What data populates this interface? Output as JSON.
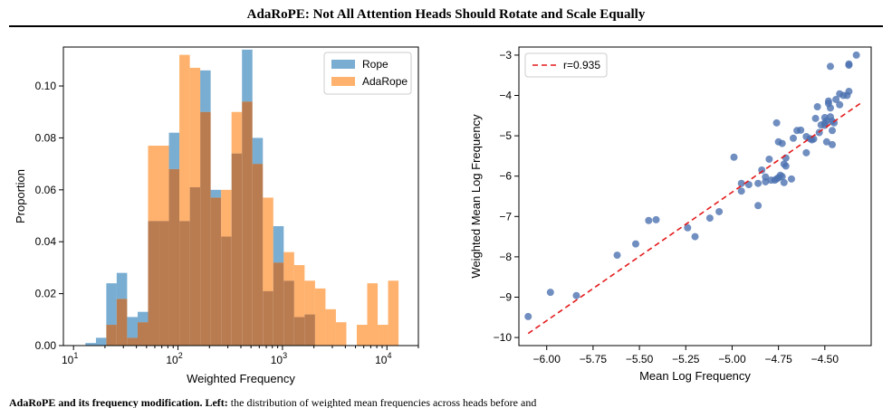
{
  "page": {
    "title": "AdaRoPE: Not All Attention Heads Should Rotate and Scale Equally",
    "caption_bold": "AdaRoPE and its frequency modification. Left:",
    "caption_text": "the distribution of weighted mean frequencies across heads before and"
  },
  "colors": {
    "rope": "#1f77b4",
    "adarope": "#ff7f0e",
    "overlap": "#b97c50",
    "scatter": "#4c72b0",
    "fit": "#e41a1c"
  },
  "chart_data": [
    {
      "type": "bar",
      "subtype": "histogram",
      "xlabel": "Weighted Frequency",
      "ylabel": "Proportion",
      "xscale": "log",
      "xlim": [
        8,
        20000
      ],
      "ylim": [
        0,
        0.115
      ],
      "xticks": [
        {
          "value": 10,
          "base": "10",
          "exp": "1"
        },
        {
          "value": 100,
          "base": "10",
          "exp": "2"
        },
        {
          "value": 1000,
          "base": "10",
          "exp": "3"
        },
        {
          "value": 10000,
          "base": "10",
          "exp": "4"
        }
      ],
      "yticks": [
        "0.00",
        "0.02",
        "0.04",
        "0.06",
        "0.08",
        "0.10"
      ],
      "legend_position": "top-right",
      "bin_edges": [
        13.0,
        16.4,
        20.6,
        25.9,
        32.6,
        41.1,
        51.7,
        65.1,
        81.9,
        103.1,
        129.8,
        163.3,
        205.5,
        258.7,
        325.6,
        409.8,
        515.8,
        649.2,
        817.1,
        1028.4,
        1294.4,
        1629.2,
        2050.5,
        2580.9,
        3248.4,
        4088.5,
        5145.9,
        6476.8,
        8151.9,
        10260.1,
        12913.6,
        16253.4
      ],
      "series": [
        {
          "name": "Rope",
          "values": [
            0.001,
            0.003,
            0.024,
            0.028,
            0.011,
            0.013,
            0.048,
            0.048,
            0.082,
            0.048,
            0.061,
            0.106,
            0.06,
            0.042,
            0.074,
            0.114,
            0.08,
            0.021,
            0.046,
            0.025,
            0.011,
            0.012,
            0.0,
            0.0,
            0.0,
            0.0,
            0.0,
            0.0,
            0.0,
            0.0,
            0.0
          ]
        },
        {
          "name": "AdaRope",
          "values": [
            0.0,
            0.0,
            0.008,
            0.018,
            0.003,
            0.009,
            0.077,
            0.077,
            0.068,
            0.112,
            0.107,
            0.09,
            0.057,
            0.06,
            0.09,
            0.094,
            0.07,
            0.057,
            0.032,
            0.036,
            0.031,
            0.025,
            0.022,
            0.014,
            0.009,
            0.0,
            0.008,
            0.024,
            0.008,
            0.025,
            0.0
          ]
        }
      ]
    },
    {
      "type": "scatter",
      "xlabel": "Mean Log Frequency",
      "ylabel": "Weighted Mean Log Frequency",
      "xlim": [
        -6.15,
        -4.25
      ],
      "ylim": [
        -10.2,
        -2.8
      ],
      "xticks": [
        "-6.00",
        "-5.75",
        "-5.50",
        "-5.25",
        "-5.00",
        "-4.75",
        "-4.50"
      ],
      "yticks": [
        "-10",
        "-9",
        "-8",
        "-7",
        "-6",
        "-5",
        "-4",
        "-3"
      ],
      "legend_position": "top-left",
      "fit_line": {
        "label": "r=0.935",
        "x": [
          -6.1,
          -4.3
        ],
        "y": [
          -9.9,
          -4.17
        ]
      },
      "points": [
        [
          -6.1,
          -9.48
        ],
        [
          -5.98,
          -8.88
        ],
        [
          -5.84,
          -8.96
        ],
        [
          -5.62,
          -7.96
        ],
        [
          -5.52,
          -7.68
        ],
        [
          -5.45,
          -7.1
        ],
        [
          -5.41,
          -7.08
        ],
        [
          -5.24,
          -7.28
        ],
        [
          -5.2,
          -7.5
        ],
        [
          -5.12,
          -7.04
        ],
        [
          -5.07,
          -6.88
        ],
        [
          -4.99,
          -5.53
        ],
        [
          -4.95,
          -6.37
        ],
        [
          -4.95,
          -6.18
        ],
        [
          -4.91,
          -6.21
        ],
        [
          -4.86,
          -6.18
        ],
        [
          -4.86,
          -6.73
        ],
        [
          -4.84,
          -5.85
        ],
        [
          -4.82,
          -6.14
        ],
        [
          -4.82,
          -6.02
        ],
        [
          -4.79,
          -6.1
        ],
        [
          -4.8,
          -5.58
        ],
        [
          -4.77,
          -6.1
        ],
        [
          -4.76,
          -6.07
        ],
        [
          -4.75,
          -6.04
        ],
        [
          -4.74,
          -5.98
        ],
        [
          -4.73,
          -6.01
        ],
        [
          -4.72,
          -6.16
        ],
        [
          -4.75,
          -5.15
        ],
        [
          -4.76,
          -4.68
        ],
        [
          -4.73,
          -5.19
        ],
        [
          -4.72,
          -5.7
        ],
        [
          -4.71,
          -5.55
        ],
        [
          -4.71,
          -5.75
        ],
        [
          -4.68,
          -6.07
        ],
        [
          -4.67,
          -5.06
        ],
        [
          -4.65,
          -4.87
        ],
        [
          -4.63,
          -4.86
        ],
        [
          -4.6,
          -5.42
        ],
        [
          -4.6,
          -5.02
        ],
        [
          -4.58,
          -5.07
        ],
        [
          -4.57,
          -5.1
        ],
        [
          -4.56,
          -5.08
        ],
        [
          -4.55,
          -4.57
        ],
        [
          -4.54,
          -4.28
        ],
        [
          -4.53,
          -4.92
        ],
        [
          -4.52,
          -4.73
        ],
        [
          -4.5,
          -4.74
        ],
        [
          -4.5,
          -4.68
        ],
        [
          -4.5,
          -4.55
        ],
        [
          -4.49,
          -5.15
        ],
        [
          -4.49,
          -4.63
        ],
        [
          -4.48,
          -4.2
        ],
        [
          -4.48,
          -4.14
        ],
        [
          -4.47,
          -4.53
        ],
        [
          -4.47,
          -4.31
        ],
        [
          -4.46,
          -4.87
        ],
        [
          -4.46,
          -4.64
        ],
        [
          -4.45,
          -4.68
        ],
        [
          -4.44,
          -4.1
        ],
        [
          -4.42,
          -3.96
        ],
        [
          -4.42,
          -4.23
        ],
        [
          -4.4,
          -4.0
        ],
        [
          -4.38,
          -4.0
        ],
        [
          -4.37,
          -3.9
        ],
        [
          -4.47,
          -3.28
        ],
        [
          -4.37,
          -3.22
        ],
        [
          -4.33,
          -3.0
        ],
        [
          -4.37,
          -3.25
        ],
        [
          -4.46,
          -5.22
        ]
      ]
    }
  ]
}
